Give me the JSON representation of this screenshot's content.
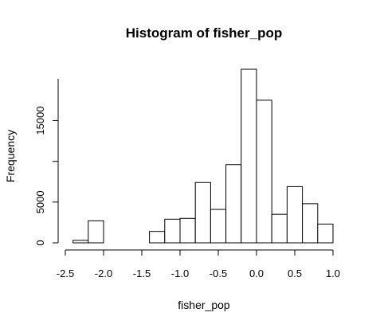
{
  "chart_data": {
    "type": "bar",
    "title": "Histogram of fisher_pop",
    "xlabel": "fisher_pop",
    "ylabel": "Frequency",
    "bin_edges": [
      -2.4,
      -2.2,
      -2.0,
      -1.8,
      -1.6,
      -1.4,
      -1.2,
      -1.0,
      -0.8,
      -0.6,
      -0.4,
      -0.2,
      0.0,
      0.2,
      0.4,
      0.6,
      0.8,
      1.0
    ],
    "values": [
      300,
      2700,
      0,
      0,
      0,
      1400,
      2900,
      3000,
      7400,
      4100,
      9600,
      21300,
      17500,
      3500,
      6900,
      4800,
      2300
    ],
    "x_ticks": [
      -2.5,
      -2.0,
      -1.5,
      -1.0,
      -0.5,
      0.0,
      0.5,
      1.0
    ],
    "x_tick_labels": [
      "-2.5",
      "-2.0",
      "-1.5",
      "-1.0",
      "-0.5",
      "0.0",
      "0.5",
      "1.0"
    ],
    "y_ticks": [
      0,
      5000,
      10000,
      15000
    ],
    "y_tick_labels": [
      "0",
      "5000",
      "",
      "15000"
    ],
    "xlim": [
      -2.5,
      1.0
    ],
    "ylim": [
      0,
      21300
    ],
    "grid": false,
    "colors": {
      "bar_fill": "#ffffff",
      "bar_stroke": "#000000"
    }
  }
}
